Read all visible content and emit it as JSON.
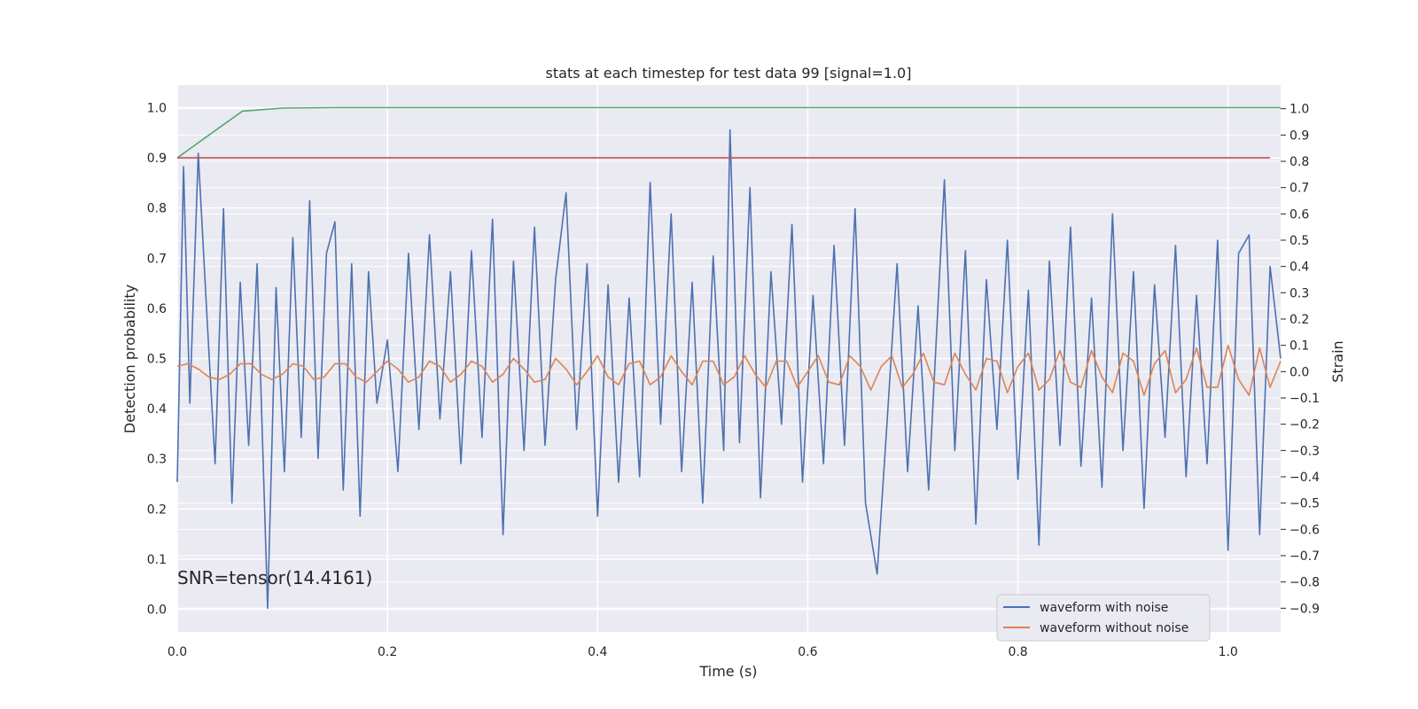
{
  "chart_data": {
    "type": "line",
    "title": "stats at each timestep for test data 99 [signal=1.0]",
    "xlabel": "Time (s)",
    "ylabel": "Detection probability",
    "ylabel_right": "Strain",
    "annotation": "SNR=tensor(14.4161)",
    "xlim": [
      0.0,
      1.05
    ],
    "ylim_left": [
      -0.045,
      1.045
    ],
    "ylim_right": [
      -0.99,
      1.09
    ],
    "x_ticks": [
      0.0,
      0.2,
      0.4,
      0.6,
      0.8,
      1.0
    ],
    "x_tick_labels": [
      "0.0",
      "0.2",
      "0.4",
      "0.6",
      "0.8",
      "1.0"
    ],
    "y_left_ticks": [
      0.0,
      0.1,
      0.2,
      0.3,
      0.4,
      0.5,
      0.6,
      0.7,
      0.8,
      0.9,
      1.0
    ],
    "y_left_tick_labels": [
      "0.0",
      "0.1",
      "0.2",
      "0.3",
      "0.4",
      "0.5",
      "0.6",
      "0.7",
      "0.8",
      "0.9",
      "1.0"
    ],
    "y_right_ticks": [
      -0.9,
      -0.8,
      -0.7,
      -0.6,
      -0.5,
      -0.4,
      -0.3,
      -0.2,
      -0.1,
      0.0,
      0.1,
      0.2,
      0.3,
      0.4,
      0.5,
      0.6,
      0.7,
      0.8,
      0.9,
      1.0
    ],
    "y_right_tick_labels": [
      "−0.9",
      "−0.8",
      "−0.7",
      "−0.6",
      "−0.5",
      "−0.4",
      "−0.3",
      "−0.2",
      "−0.1",
      "0.0",
      "0.1",
      "0.2",
      "0.3",
      "0.4",
      "0.5",
      "0.6",
      "0.7",
      "0.8",
      "0.9",
      "1.0"
    ],
    "grid": true,
    "legend_position": "lower-right",
    "series": [
      {
        "name": "waveform with noise",
        "axis": "right",
        "color": "#4c72b0",
        "x": [
          0.0,
          0.006,
          0.012,
          0.02,
          0.028,
          0.036,
          0.044,
          0.052,
          0.06,
          0.068,
          0.076,
          0.086,
          0.094,
          0.102,
          0.11,
          0.118,
          0.126,
          0.134,
          0.142,
          0.15,
          0.158,
          0.166,
          0.174,
          0.182,
          0.19,
          0.2,
          0.21,
          0.22,
          0.23,
          0.24,
          0.25,
          0.26,
          0.27,
          0.28,
          0.29,
          0.3,
          0.31,
          0.32,
          0.33,
          0.34,
          0.35,
          0.36,
          0.37,
          0.38,
          0.39,
          0.4,
          0.41,
          0.42,
          0.43,
          0.44,
          0.45,
          0.46,
          0.47,
          0.48,
          0.49,
          0.5,
          0.51,
          0.52,
          0.526,
          0.535,
          0.545,
          0.555,
          0.565,
          0.575,
          0.585,
          0.595,
          0.605,
          0.615,
          0.625,
          0.635,
          0.645,
          0.655,
          0.666,
          0.675,
          0.685,
          0.695,
          0.705,
          0.715,
          0.73,
          0.74,
          0.75,
          0.76,
          0.77,
          0.78,
          0.79,
          0.8,
          0.81,
          0.82,
          0.83,
          0.84,
          0.85,
          0.86,
          0.87,
          0.88,
          0.89,
          0.9,
          0.91,
          0.92,
          0.93,
          0.94,
          0.95,
          0.96,
          0.97,
          0.98,
          0.99,
          1.0,
          1.01,
          1.02,
          1.03,
          1.04,
          1.05
        ],
        "y": [
          -0.42,
          0.78,
          -0.12,
          0.83,
          0.23,
          -0.35,
          0.62,
          -0.5,
          0.34,
          -0.28,
          0.41,
          -0.9,
          0.32,
          -0.38,
          0.51,
          -0.25,
          0.65,
          -0.33,
          0.45,
          0.57,
          -0.45,
          0.41,
          -0.55,
          0.38,
          -0.12,
          0.12,
          -0.38,
          0.45,
          -0.22,
          0.52,
          -0.18,
          0.38,
          -0.35,
          0.46,
          -0.25,
          0.58,
          -0.62,
          0.42,
          -0.3,
          0.55,
          -0.28,
          0.35,
          0.68,
          -0.22,
          0.41,
          -0.55,
          0.33,
          -0.42,
          0.28,
          -0.4,
          0.72,
          -0.2,
          0.6,
          -0.38,
          0.34,
          -0.5,
          0.44,
          -0.3,
          0.92,
          -0.27,
          0.7,
          -0.48,
          0.38,
          -0.2,
          0.56,
          -0.42,
          0.29,
          -0.35,
          0.48,
          -0.28,
          0.62,
          -0.5,
          -0.77,
          -0.22,
          0.41,
          -0.38,
          0.25,
          -0.45,
          0.73,
          -0.3,
          0.46,
          -0.58,
          0.35,
          -0.22,
          0.5,
          -0.41,
          0.31,
          -0.66,
          0.42,
          -0.28,
          0.55,
          -0.36,
          0.28,
          -0.44,
          0.6,
          -0.3,
          0.38,
          -0.52,
          0.33,
          -0.25,
          0.48,
          -0.4,
          0.29,
          -0.35,
          0.5,
          -0.68,
          0.45,
          0.52,
          -0.62,
          0.4,
          0.05
        ]
      },
      {
        "name": "waveform without noise",
        "axis": "right",
        "color": "#dd8452",
        "x": [
          0.0,
          0.01,
          0.02,
          0.03,
          0.04,
          0.05,
          0.06,
          0.07,
          0.08,
          0.09,
          0.1,
          0.11,
          0.12,
          0.13,
          0.14,
          0.15,
          0.16,
          0.17,
          0.18,
          0.19,
          0.2,
          0.21,
          0.22,
          0.23,
          0.24,
          0.25,
          0.26,
          0.27,
          0.28,
          0.29,
          0.3,
          0.31,
          0.32,
          0.33,
          0.34,
          0.35,
          0.36,
          0.37,
          0.38,
          0.39,
          0.4,
          0.41,
          0.42,
          0.43,
          0.44,
          0.45,
          0.46,
          0.47,
          0.48,
          0.49,
          0.5,
          0.51,
          0.52,
          0.53,
          0.54,
          0.55,
          0.56,
          0.57,
          0.58,
          0.59,
          0.6,
          0.61,
          0.62,
          0.63,
          0.64,
          0.65,
          0.66,
          0.67,
          0.68,
          0.69,
          0.7,
          0.71,
          0.72,
          0.73,
          0.74,
          0.75,
          0.76,
          0.77,
          0.78,
          0.79,
          0.8,
          0.81,
          0.82,
          0.83,
          0.84,
          0.85,
          0.86,
          0.87,
          0.88,
          0.89,
          0.9,
          0.91,
          0.92,
          0.93,
          0.94,
          0.95,
          0.96,
          0.97,
          0.98,
          0.99,
          1.0,
          1.01,
          1.02,
          1.03,
          1.04,
          1.05
        ],
        "y": [
          0.02,
          0.03,
          0.01,
          -0.02,
          -0.03,
          -0.01,
          0.03,
          0.03,
          -0.01,
          -0.03,
          -0.01,
          0.03,
          0.02,
          -0.03,
          -0.02,
          0.03,
          0.03,
          -0.02,
          -0.04,
          0.0,
          0.04,
          0.01,
          -0.04,
          -0.02,
          0.04,
          0.02,
          -0.04,
          -0.01,
          0.04,
          0.02,
          -0.04,
          -0.01,
          0.05,
          0.01,
          -0.04,
          -0.03,
          0.05,
          0.01,
          -0.05,
          0.0,
          0.06,
          -0.02,
          -0.05,
          0.03,
          0.04,
          -0.05,
          -0.02,
          0.06,
          0.0,
          -0.05,
          0.04,
          0.04,
          -0.05,
          -0.02,
          0.06,
          -0.01,
          -0.06,
          0.04,
          0.04,
          -0.06,
          0.0,
          0.06,
          -0.04,
          -0.05,
          0.06,
          0.02,
          -0.07,
          0.02,
          0.06,
          -0.06,
          -0.01,
          0.07,
          -0.04,
          -0.05,
          0.07,
          -0.01,
          -0.07,
          0.05,
          0.04,
          -0.08,
          0.02,
          0.07,
          -0.07,
          -0.03,
          0.08,
          -0.04,
          -0.06,
          0.08,
          -0.02,
          -0.08,
          0.07,
          0.04,
          -0.09,
          0.03,
          0.08,
          -0.08,
          -0.03,
          0.09,
          -0.06,
          -0.06,
          0.1,
          -0.03,
          -0.09,
          0.09,
          -0.06,
          0.04
        ]
      },
      {
        "name": "",
        "axis": "left",
        "color": "#55a868",
        "x": [
          0.0,
          0.062,
          0.1,
          0.15,
          1.05
        ],
        "y": [
          0.9,
          0.993,
          0.999,
          1.0,
          1.0
        ]
      },
      {
        "name": "",
        "axis": "left",
        "color": "#c44e52",
        "x": [
          0.0,
          1.04
        ],
        "y": [
          0.9,
          0.9
        ]
      }
    ]
  }
}
